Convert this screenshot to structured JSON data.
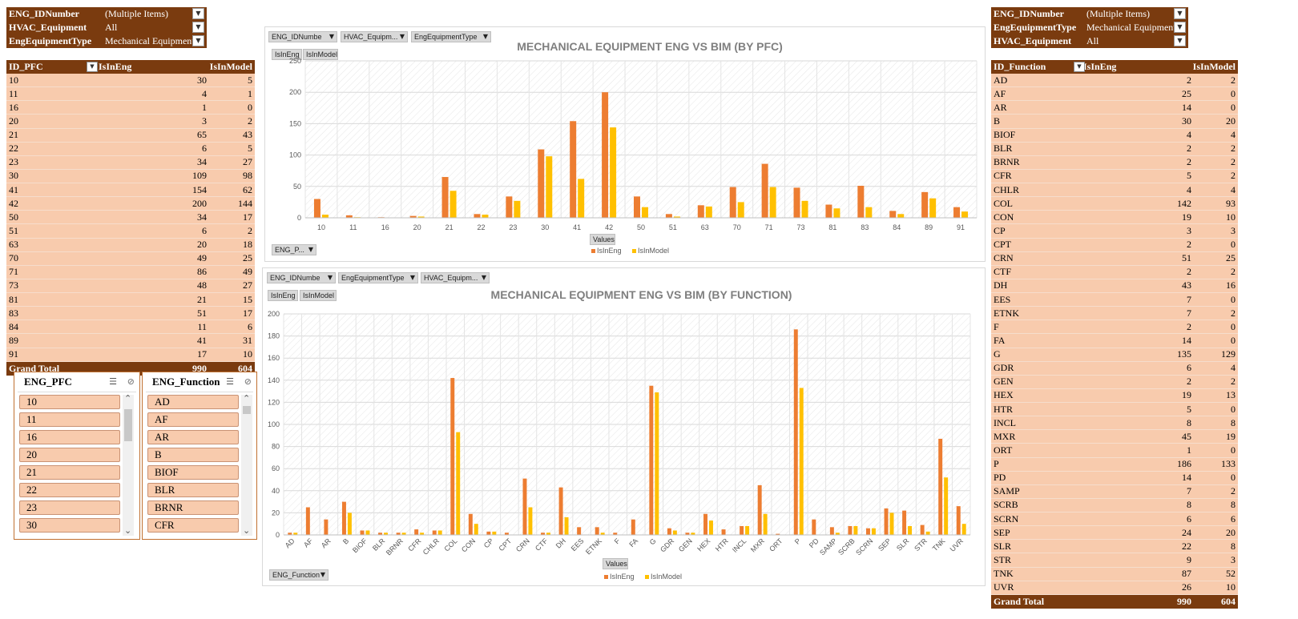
{
  "filters_left": [
    {
      "key": "ENG_IDNumber",
      "value": "(Multiple Items)",
      "icon": "filter-icon"
    },
    {
      "key": "HVAC_Equipment",
      "value": "All",
      "icon": "dropdown-icon"
    },
    {
      "key": "EngEquipmentType",
      "value": "Mechanical Equipment",
      "icon": "filter-icon"
    }
  ],
  "filters_right": [
    {
      "key": "ENG_IDNumber",
      "value": "(Multiple Items)",
      "icon": "filter-icon"
    },
    {
      "key": "EngEquipmentType",
      "value": "Mechanical Equipment",
      "icon": "filter-icon"
    },
    {
      "key": "HVAC_Equipment",
      "value": "All",
      "icon": "dropdown-icon"
    }
  ],
  "pivot_pfc": {
    "headers": [
      "ID_PFC",
      "IsInEng",
      "IsInModel"
    ],
    "rows": [
      [
        "10",
        "30",
        "5"
      ],
      [
        "11",
        "4",
        "1"
      ],
      [
        "16",
        "1",
        "0"
      ],
      [
        "20",
        "3",
        "2"
      ],
      [
        "21",
        "65",
        "43"
      ],
      [
        "22",
        "6",
        "5"
      ],
      [
        "23",
        "34",
        "27"
      ],
      [
        "30",
        "109",
        "98"
      ],
      [
        "41",
        "154",
        "62"
      ],
      [
        "42",
        "200",
        "144"
      ],
      [
        "50",
        "34",
        "17"
      ],
      [
        "51",
        "6",
        "2"
      ],
      [
        "63",
        "20",
        "18"
      ],
      [
        "70",
        "49",
        "25"
      ],
      [
        "71",
        "86",
        "49"
      ],
      [
        "73",
        "48",
        "27"
      ],
      [
        "81",
        "21",
        "15"
      ],
      [
        "83",
        "51",
        "17"
      ],
      [
        "84",
        "11",
        "6"
      ],
      [
        "89",
        "41",
        "31"
      ],
      [
        "91",
        "17",
        "10"
      ]
    ],
    "total": [
      "Grand Total",
      "990",
      "604"
    ]
  },
  "pivot_function": {
    "headers": [
      "ID_Function",
      "IsInEng",
      "IsInModel"
    ],
    "rows": [
      [
        "AD",
        "2",
        "2"
      ],
      [
        "AF",
        "25",
        "0"
      ],
      [
        "AR",
        "14",
        "0"
      ],
      [
        "B",
        "30",
        "20"
      ],
      [
        "BIOF",
        "4",
        "4"
      ],
      [
        "BLR",
        "2",
        "2"
      ],
      [
        "BRNR",
        "2",
        "2"
      ],
      [
        "CFR",
        "5",
        "2"
      ],
      [
        "CHLR",
        "4",
        "4"
      ],
      [
        "COL",
        "142",
        "93"
      ],
      [
        "CON",
        "19",
        "10"
      ],
      [
        "CP",
        "3",
        "3"
      ],
      [
        "CPT",
        "2",
        "0"
      ],
      [
        "CRN",
        "51",
        "25"
      ],
      [
        "CTF",
        "2",
        "2"
      ],
      [
        "DH",
        "43",
        "16"
      ],
      [
        "EES",
        "7",
        "0"
      ],
      [
        "ETNK",
        "7",
        "2"
      ],
      [
        "F",
        "2",
        "0"
      ],
      [
        "FA",
        "14",
        "0"
      ],
      [
        "G",
        "135",
        "129"
      ],
      [
        "GDR",
        "6",
        "4"
      ],
      [
        "GEN",
        "2",
        "2"
      ],
      [
        "HEX",
        "19",
        "13"
      ],
      [
        "HTR",
        "5",
        "0"
      ],
      [
        "INCL",
        "8",
        "8"
      ],
      [
        "MXR",
        "45",
        "19"
      ],
      [
        "ORT",
        "1",
        "0"
      ],
      [
        "P",
        "186",
        "133"
      ],
      [
        "PD",
        "14",
        "0"
      ],
      [
        "SAMP",
        "7",
        "2"
      ],
      [
        "SCRB",
        "8",
        "8"
      ],
      [
        "SCRN",
        "6",
        "6"
      ],
      [
        "SEP",
        "24",
        "20"
      ],
      [
        "SLR",
        "22",
        "8"
      ],
      [
        "STR",
        "9",
        "3"
      ],
      [
        "TNK",
        "87",
        "52"
      ],
      [
        "UVR",
        "26",
        "10"
      ]
    ],
    "total": [
      "Grand Total",
      "990",
      "604"
    ]
  },
  "slicer_pfc": {
    "title": "ENG_PFC",
    "items": [
      "10",
      "11",
      "16",
      "20",
      "21",
      "22",
      "23",
      "30"
    ]
  },
  "slicer_function": {
    "title": "ENG_Function",
    "items": [
      "AD",
      "AF",
      "AR",
      "B",
      "BIOF",
      "BLR",
      "BRNR",
      "CFR"
    ]
  },
  "chart_pfc_buttons": {
    "f1": "ENG_IDNumbe",
    "f2": "HVAC_Equipm...",
    "f3": "EngEquipmentType",
    "s1": "IsInEng",
    "s2": "IsInModel",
    "axis": "ENG_P...",
    "values": "Values"
  },
  "chart_fn_buttons": {
    "f1": "ENG_IDNumbe",
    "f2": "EngEquipmentType",
    "f3": "HVAC_Equipm...",
    "s1": "IsInEng",
    "s2": "IsInModel",
    "axis": "ENG_Function",
    "values": "Values"
  },
  "chart_data": [
    {
      "type": "bar",
      "title": "MECHANICAL EQUIPMENT ENG VS BIM (BY PFC)",
      "categories": [
        "10",
        "11",
        "16",
        "20",
        "21",
        "22",
        "23",
        "30",
        "41",
        "42",
        "50",
        "51",
        "63",
        "70",
        "71",
        "73",
        "81",
        "83",
        "84",
        "89",
        "91"
      ],
      "series": [
        {
          "name": "IsInEng",
          "values": [
            30,
            4,
            1,
            3,
            65,
            6,
            34,
            109,
            154,
            200,
            34,
            6,
            20,
            49,
            86,
            48,
            21,
            51,
            11,
            41,
            17
          ],
          "color": "#ed7d31"
        },
        {
          "name": "IsInModel",
          "values": [
            5,
            1,
            0,
            2,
            43,
            5,
            27,
            98,
            62,
            144,
            17,
            2,
            18,
            25,
            49,
            27,
            15,
            17,
            6,
            31,
            10
          ],
          "color": "#ffc000"
        }
      ],
      "ylim": [
        0,
        250
      ],
      "yticks": [
        "0",
        "50",
        "100",
        "150",
        "200",
        "250"
      ],
      "legend": "bottom",
      "xlabel": "",
      "ylabel": ""
    },
    {
      "type": "bar",
      "title": "MECHANICAL EQUIPMENT ENG VS BIM (BY FUNCTION)",
      "categories": [
        "AD",
        "AF",
        "AR",
        "B",
        "BIOF",
        "BLR",
        "BRNR",
        "CFR",
        "CHLR",
        "COL",
        "CON",
        "CP",
        "CPT",
        "CRN",
        "CTF",
        "DH",
        "EES",
        "ETNK",
        "F",
        "FA",
        "G",
        "GDR",
        "GEN",
        "HEX",
        "HTR",
        "INCL",
        "MXR",
        "ORT",
        "P",
        "PD",
        "SAMP",
        "SCRB",
        "SCRN",
        "SEP",
        "SLR",
        "STR",
        "TNK",
        "UVR"
      ],
      "series": [
        {
          "name": "IsInEng",
          "values": [
            2,
            25,
            14,
            30,
            4,
            2,
            2,
            5,
            4,
            142,
            19,
            3,
            2,
            51,
            2,
            43,
            7,
            7,
            2,
            14,
            135,
            6,
            2,
            19,
            5,
            8,
            45,
            1,
            186,
            14,
            7,
            8,
            6,
            24,
            22,
            9,
            87,
            26
          ],
          "color": "#ed7d31"
        },
        {
          "name": "IsInModel",
          "values": [
            2,
            0,
            0,
            20,
            4,
            2,
            2,
            2,
            4,
            93,
            10,
            3,
            0,
            25,
            2,
            16,
            0,
            2,
            0,
            0,
            129,
            4,
            2,
            13,
            0,
            8,
            19,
            0,
            133,
            0,
            2,
            8,
            6,
            20,
            8,
            3,
            52,
            10
          ],
          "color": "#ffc000"
        }
      ],
      "ylim": [
        0,
        200
      ],
      "yticks": [
        "0",
        "20",
        "40",
        "60",
        "80",
        "100",
        "120",
        "140",
        "160",
        "180",
        "200"
      ],
      "legend": "bottom",
      "xlabel": "",
      "ylabel": ""
    }
  ]
}
